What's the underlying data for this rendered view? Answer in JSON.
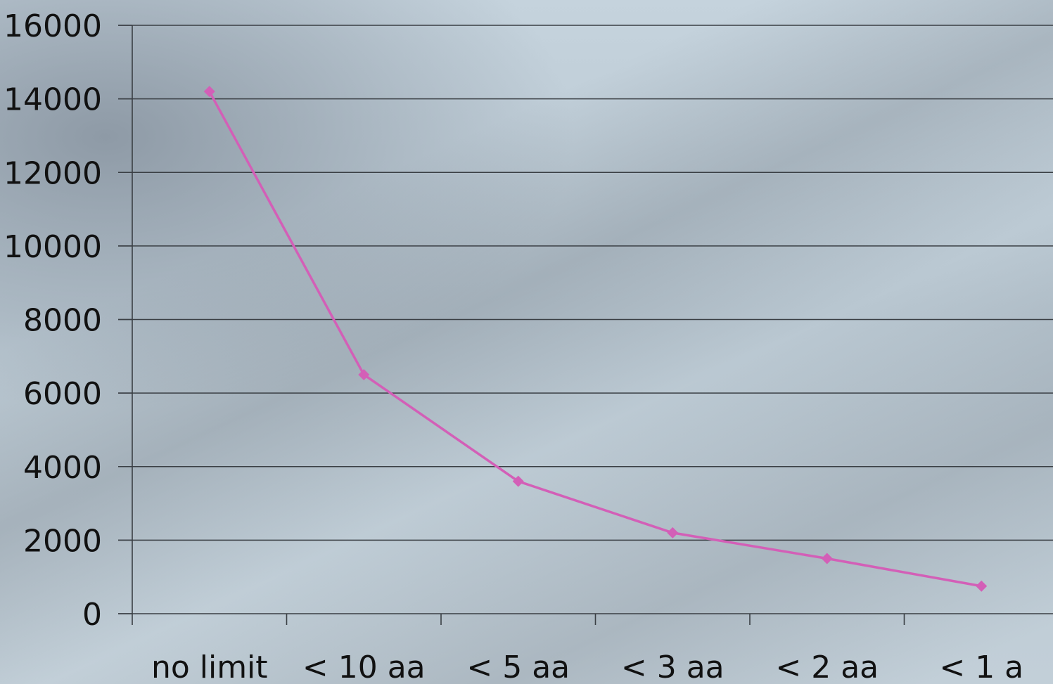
{
  "chart_data": {
    "type": "line",
    "title": "",
    "xlabel": "",
    "ylabel": "",
    "categories": [
      "no limit",
      "< 10 aa",
      "< 5 aa",
      "< 3 aa",
      "< 2 aa",
      "< 1 a"
    ],
    "series": [
      {
        "values": [
          14200,
          6500,
          3600,
          2200,
          1500,
          750
        ],
        "color": "#d35fb7"
      }
    ],
    "ylim": [
      0,
      16000
    ],
    "yticks": [
      0,
      2000,
      4000,
      6000,
      8000,
      10000,
      12000,
      14000,
      16000
    ],
    "grid": true,
    "legend": "none",
    "marker": "diamond",
    "gridline_color": "#3a3f44",
    "axis_color": "#3a3f44"
  }
}
